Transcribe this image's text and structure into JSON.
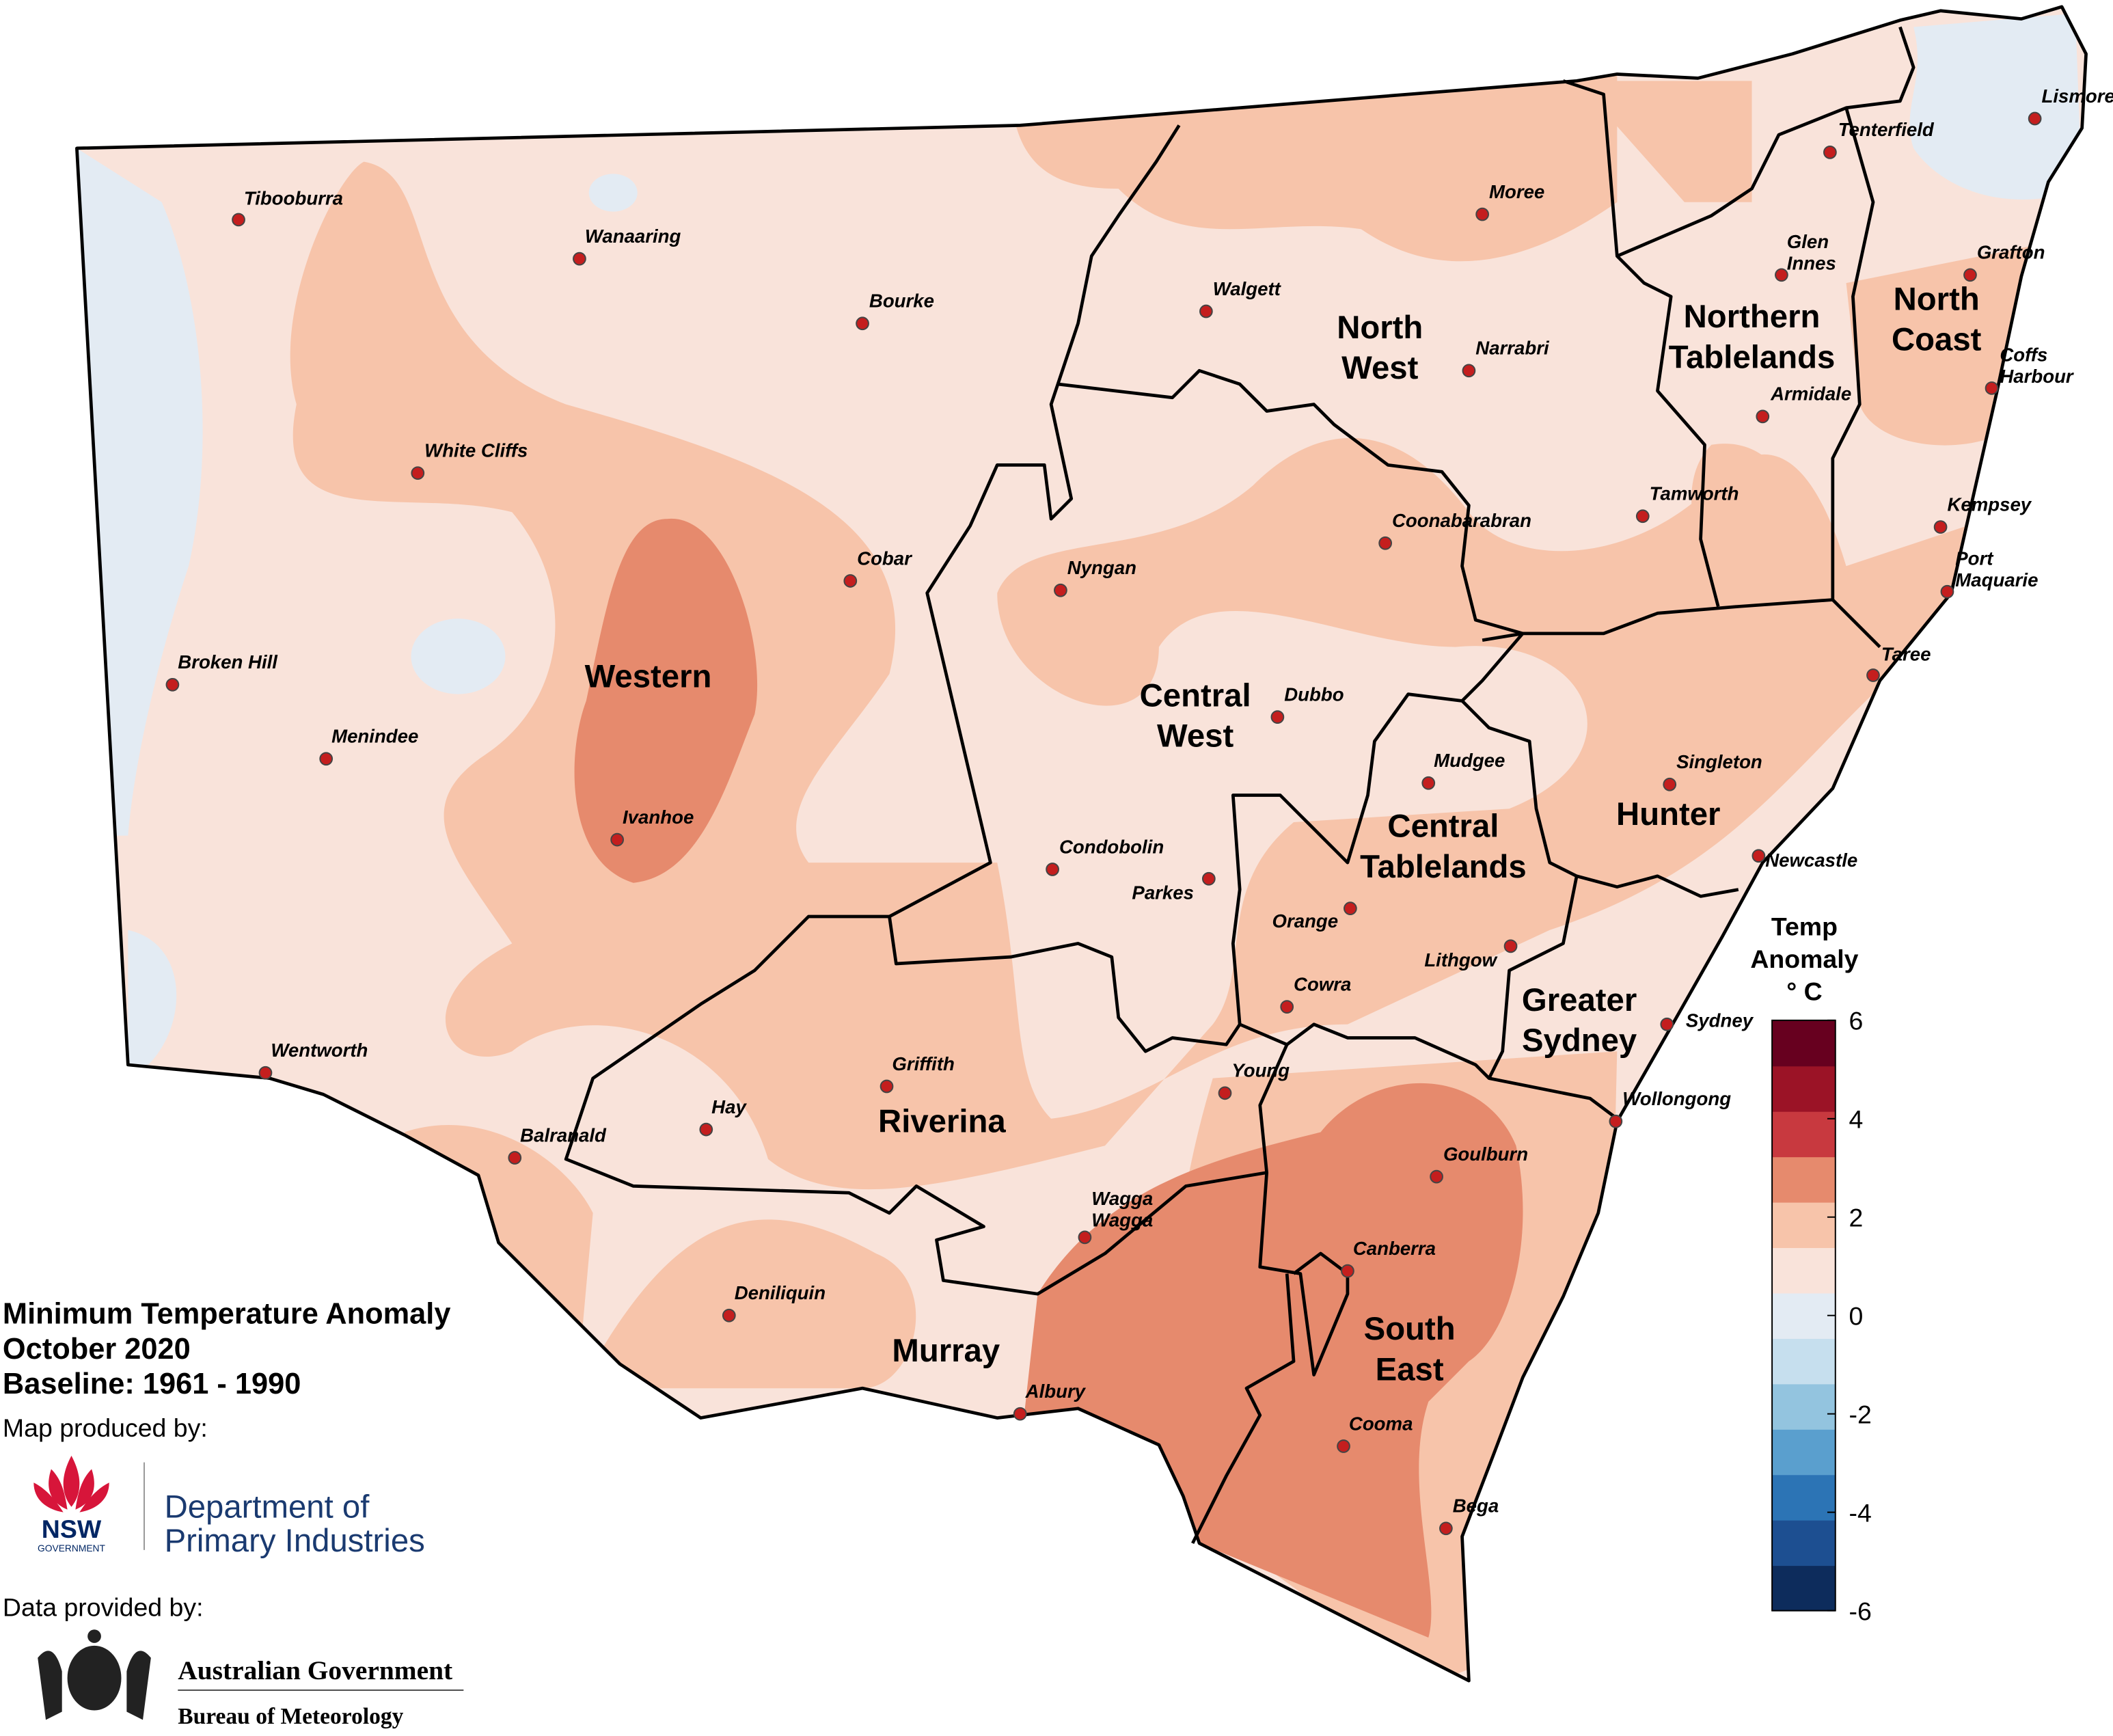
{
  "title": [
    "Minimum Temperature Anomaly",
    "October 2020",
    "Baseline: 1961 - 1990"
  ],
  "credits": {
    "produced_by": "Map produced by:",
    "nsw_logo": [
      "NSW",
      "GOVERNMENT"
    ],
    "department": [
      "Department of",
      "Primary Industries"
    ],
    "data_by": "Data provided by:",
    "bom": [
      "Australian Government",
      "Bureau of Meteorology"
    ]
  },
  "regions": [
    [
      "Western"
    ],
    [
      "North",
      "West"
    ],
    [
      "Northern",
      "Tablelands"
    ],
    [
      "North",
      "Coast"
    ],
    [
      "Central",
      "West"
    ],
    [
      "Central",
      "Tablelands"
    ],
    [
      "Hunter"
    ],
    [
      "Greater",
      "Sydney"
    ],
    [
      "Riverina"
    ],
    [
      "Murray"
    ],
    [
      "South",
      "East"
    ]
  ],
  "towns": [
    [
      "Tibooburra"
    ],
    [
      "Wanaaring"
    ],
    [
      "Bourke"
    ],
    [
      "White Cliffs"
    ],
    [
      "Cobar"
    ],
    [
      "Broken Hill"
    ],
    [
      "Menindee"
    ],
    [
      "Ivanhoe"
    ],
    [
      "Wentworth"
    ],
    [
      "Balranald"
    ],
    [
      "Hay"
    ],
    [
      "Griffith"
    ],
    [
      "Deniliquin"
    ],
    [
      "Wagga",
      "Wagga"
    ],
    [
      "Albury"
    ],
    [
      "Young"
    ],
    [
      "Cowra"
    ],
    [
      "Orange"
    ],
    [
      "Parkes"
    ],
    [
      "Condobolin"
    ],
    [
      "Nyngan"
    ],
    [
      "Dubbo"
    ],
    [
      "Mudgee"
    ],
    [
      "Lithgow"
    ],
    [
      "Canberra"
    ],
    [
      "Goulburn"
    ],
    [
      "Cooma"
    ],
    [
      "Bega"
    ],
    [
      "Wollongong"
    ],
    [
      "Sydney"
    ],
    [
      "Newcastle"
    ],
    [
      "Singleton"
    ],
    [
      "Taree"
    ],
    [
      "Port",
      "Maquarie"
    ],
    [
      "Kempsey"
    ],
    [
      "Coffs",
      "Harbour"
    ],
    [
      "Armidale"
    ],
    [
      "Tamworth"
    ],
    [
      "Coonabarabran"
    ],
    [
      "Narrabri"
    ],
    [
      "Walgett"
    ],
    [
      "Moree"
    ],
    [
      "Glen",
      "Innes"
    ],
    [
      "Tenterfield"
    ],
    [
      "Grafton"
    ],
    [
      "Lismore"
    ]
  ],
  "legend": {
    "title": [
      "Temp",
      "Anomaly",
      "° C"
    ],
    "lim": [
      -6,
      6
    ],
    "ticks": [
      -6,
      -4,
      -2,
      0,
      2,
      4,
      6
    ],
    "colors": [
      "#0d2c5c",
      "#1d4f91",
      "#2c74b5",
      "#5a9fce",
      "#93c4df",
      "#c6dfee",
      "#e3ebf3",
      "#f9e3da",
      "#f7c4aa",
      "#e68a6d",
      "#c8393f",
      "#9b1326",
      "#67001f"
    ]
  }
}
